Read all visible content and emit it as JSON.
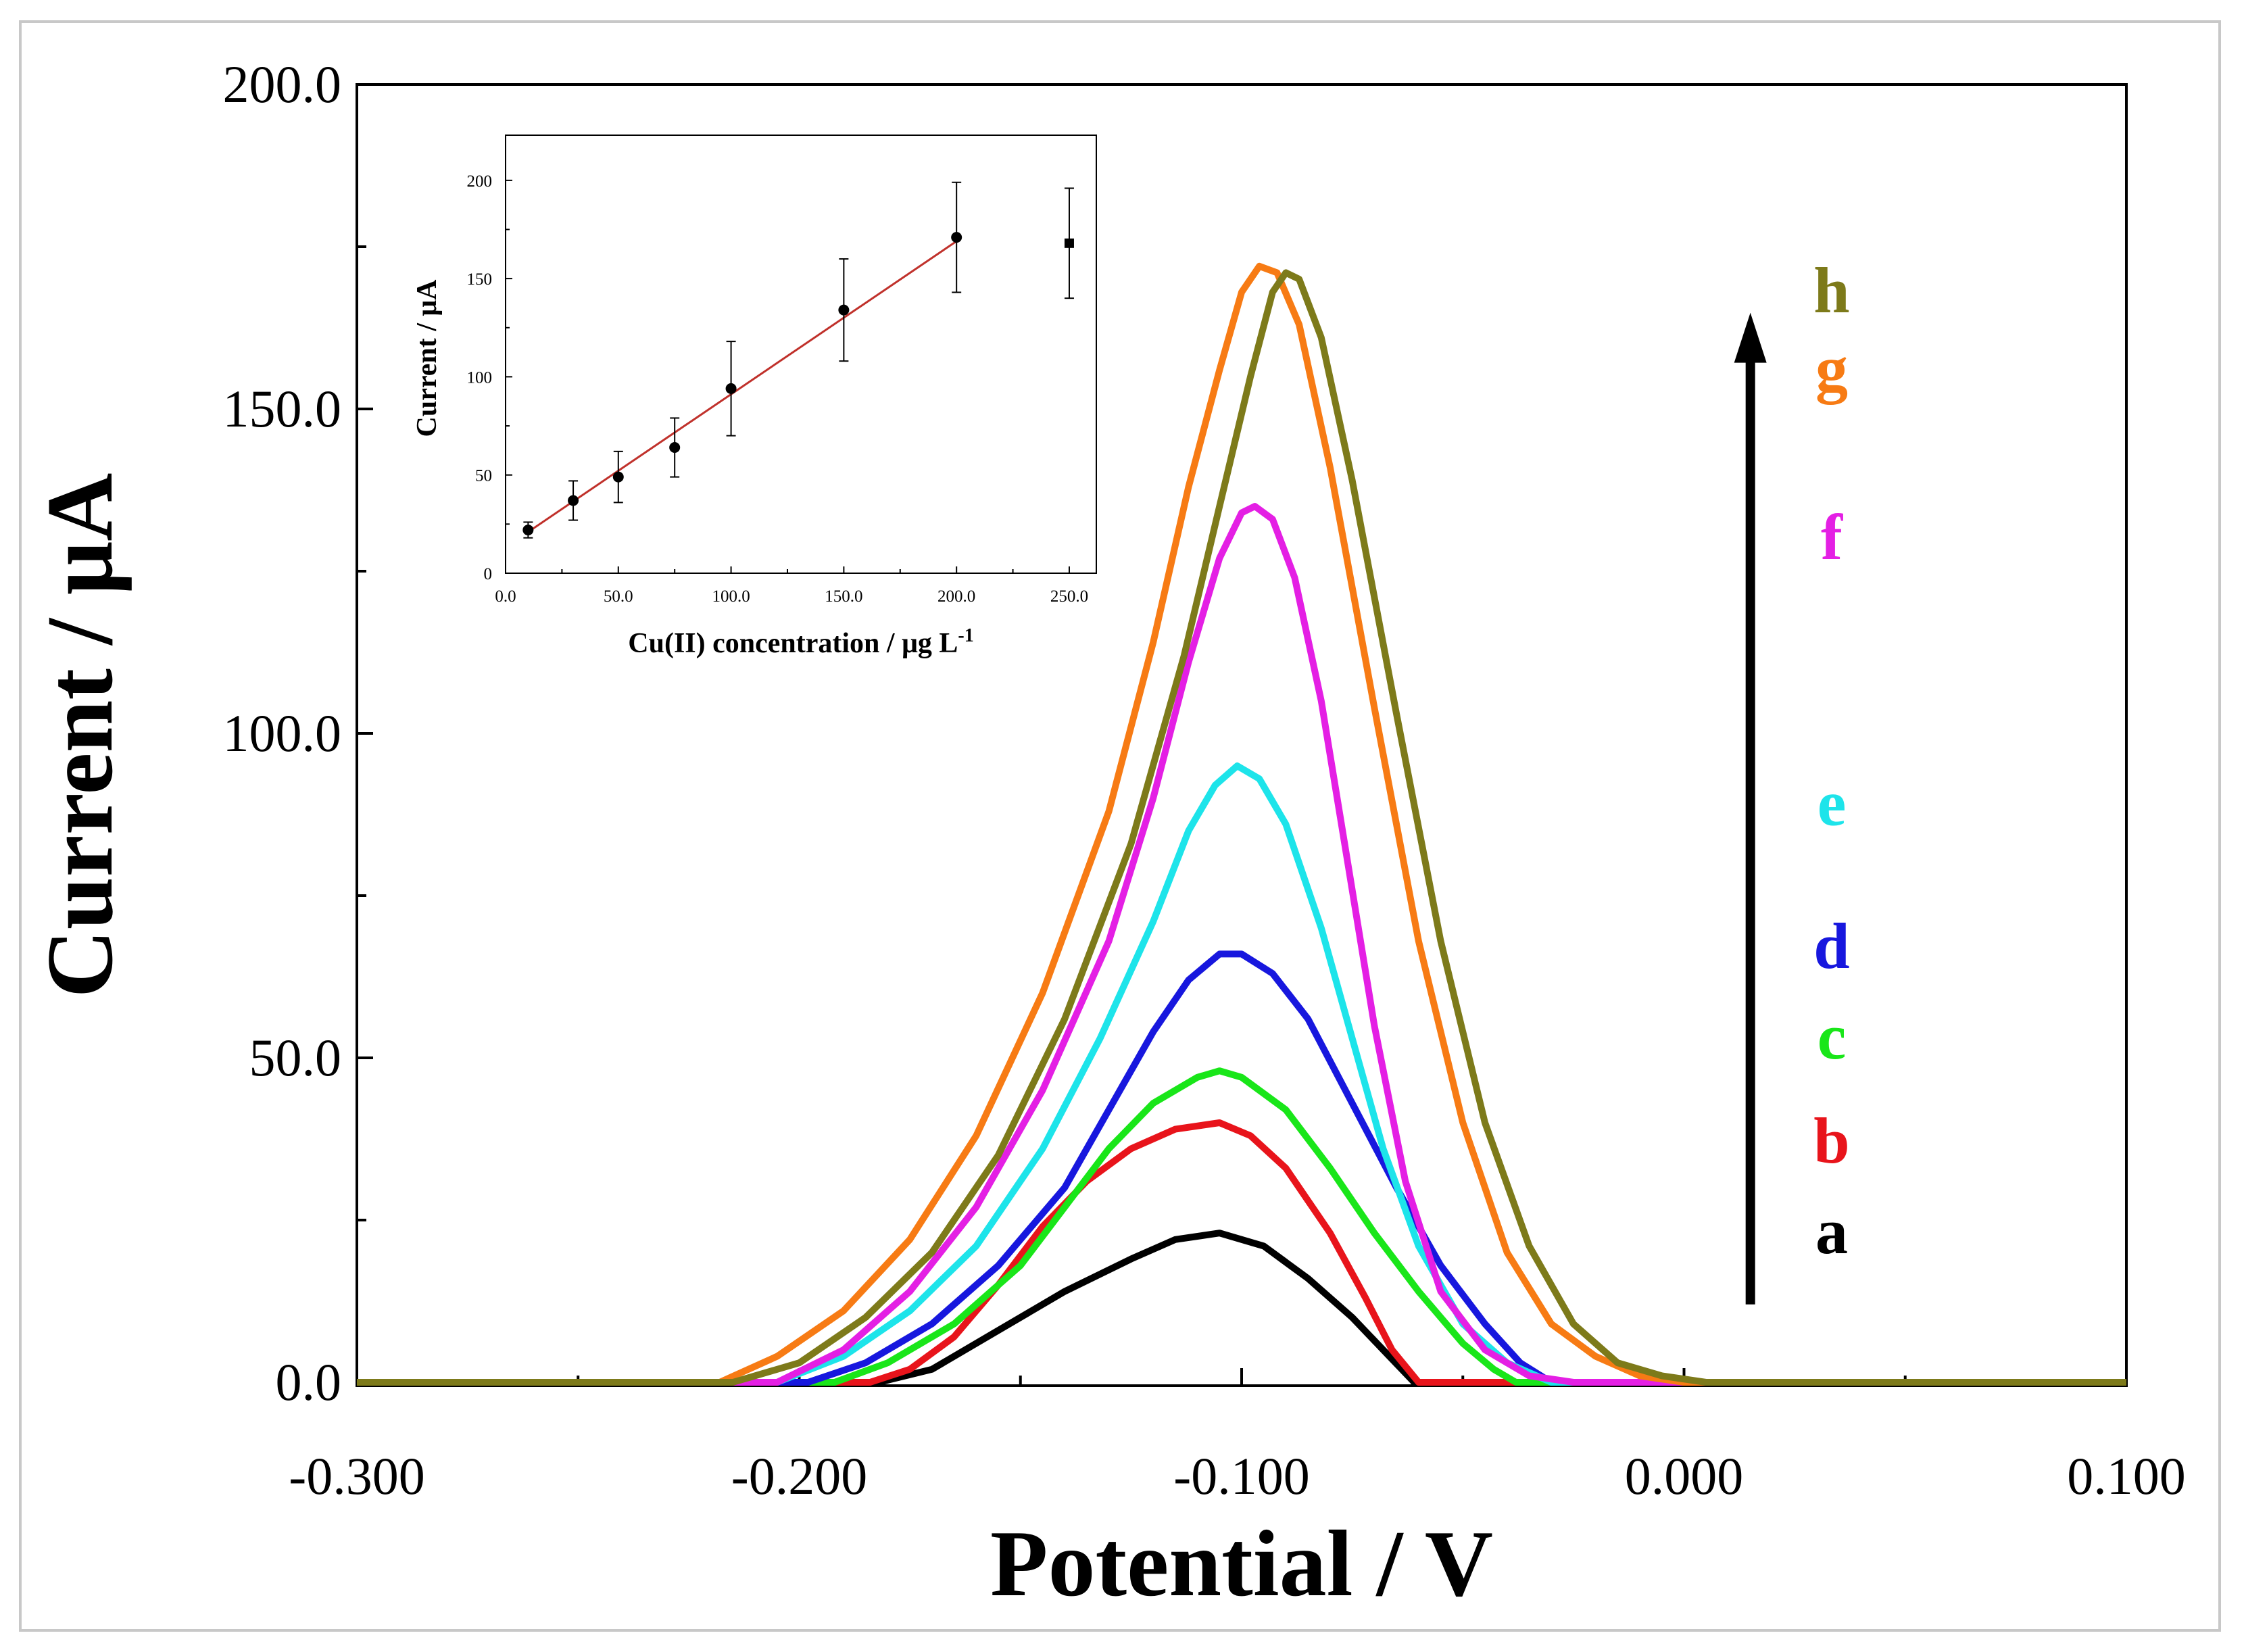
{
  "chart_data": [
    {
      "type": "line",
      "xlabel": "Potential / V",
      "ylabel": "Current / μA",
      "xlim": [
        -0.3,
        0.1
      ],
      "ylim": [
        0,
        200
      ],
      "xticks": [
        -0.3,
        -0.2,
        -0.1,
        0.0,
        0.1
      ],
      "xtick_labels": [
        "-0.300",
        "-0.200",
        "-0.100",
        "0.000",
        "0.100"
      ],
      "yticks": [
        0,
        50,
        100,
        150,
        200
      ],
      "ytick_labels": [
        "0.0",
        "50.0",
        "100.0",
        "150.0",
        "200.0"
      ],
      "arrow": {
        "from_current": 12,
        "to_current": 164,
        "potential": 0.015
      },
      "series": [
        {
          "name": "a",
          "color": "#000000",
          "points": [
            [
              -0.3,
              0
            ],
            [
              -0.182,
              0
            ],
            [
              -0.17,
              2
            ],
            [
              -0.155,
              8
            ],
            [
              -0.14,
              14
            ],
            [
              -0.125,
              19
            ],
            [
              -0.115,
              22
            ],
            [
              -0.105,
              23
            ],
            [
              -0.095,
              21
            ],
            [
              -0.085,
              16
            ],
            [
              -0.075,
              10
            ],
            [
              -0.068,
              5
            ],
            [
              -0.061,
              0
            ],
            [
              0.1,
              0
            ]
          ]
        },
        {
          "name": "b",
          "color": "#e8141b",
          "points": [
            [
              -0.3,
              0
            ],
            [
              -0.184,
              0
            ],
            [
              -0.175,
              2
            ],
            [
              -0.165,
              7
            ],
            [
              -0.155,
              15
            ],
            [
              -0.145,
              24
            ],
            [
              -0.135,
              31
            ],
            [
              -0.125,
              36
            ],
            [
              -0.115,
              39
            ],
            [
              -0.105,
              40
            ],
            [
              -0.098,
              38
            ],
            [
              -0.09,
              33
            ],
            [
              -0.08,
              23
            ],
            [
              -0.072,
              13
            ],
            [
              -0.066,
              5
            ],
            [
              -0.06,
              0
            ],
            [
              0.1,
              0
            ]
          ]
        },
        {
          "name": "c",
          "color": "#19e619",
          "points": [
            [
              -0.3,
              0
            ],
            [
              -0.192,
              0
            ],
            [
              -0.18,
              3
            ],
            [
              -0.165,
              9
            ],
            [
              -0.15,
              18
            ],
            [
              -0.14,
              27
            ],
            [
              -0.13,
              36
            ],
            [
              -0.12,
              43
            ],
            [
              -0.11,
              47
            ],
            [
              -0.105,
              48
            ],
            [
              -0.1,
              47
            ],
            [
              -0.09,
              42
            ],
            [
              -0.08,
              33
            ],
            [
              -0.07,
              23
            ],
            [
              -0.06,
              14
            ],
            [
              -0.05,
              6
            ],
            [
              -0.043,
              2
            ],
            [
              -0.038,
              0
            ],
            [
              0.1,
              0
            ]
          ]
        },
        {
          "name": "d",
          "color": "#1717de",
          "points": [
            [
              -0.3,
              0
            ],
            [
              -0.198,
              0
            ],
            [
              -0.185,
              3
            ],
            [
              -0.17,
              9
            ],
            [
              -0.155,
              18
            ],
            [
              -0.14,
              30
            ],
            [
              -0.13,
              42
            ],
            [
              -0.12,
              54
            ],
            [
              -0.112,
              62
            ],
            [
              -0.105,
              66
            ],
            [
              -0.1,
              66
            ],
            [
              -0.093,
              63
            ],
            [
              -0.085,
              56
            ],
            [
              -0.075,
              43
            ],
            [
              -0.065,
              30
            ],
            [
              -0.055,
              18
            ],
            [
              -0.045,
              9
            ],
            [
              -0.037,
              3
            ],
            [
              -0.03,
              0
            ],
            [
              0.1,
              0
            ]
          ]
        },
        {
          "name": "e",
          "color": "#1de4ea",
          "points": [
            [
              -0.3,
              0
            ],
            [
              -0.205,
              0
            ],
            [
              -0.19,
              4
            ],
            [
              -0.175,
              11
            ],
            [
              -0.16,
              21
            ],
            [
              -0.145,
              36
            ],
            [
              -0.132,
              53
            ],
            [
              -0.12,
              71
            ],
            [
              -0.112,
              85
            ],
            [
              -0.106,
              92
            ],
            [
              -0.101,
              95
            ],
            [
              -0.096,
              93
            ],
            [
              -0.09,
              86
            ],
            [
              -0.082,
              70
            ],
            [
              -0.075,
              53
            ],
            [
              -0.068,
              36
            ],
            [
              -0.06,
              21
            ],
            [
              -0.05,
              9
            ],
            [
              -0.04,
              3
            ],
            [
              -0.03,
              0
            ],
            [
              0.1,
              0
            ]
          ]
        },
        {
          "name": "f",
          "color": "#e41fe4",
          "points": [
            [
              -0.3,
              0
            ],
            [
              -0.205,
              0
            ],
            [
              -0.19,
              5
            ],
            [
              -0.175,
              14
            ],
            [
              -0.16,
              27
            ],
            [
              -0.145,
              45
            ],
            [
              -0.13,
              68
            ],
            [
              -0.12,
              90
            ],
            [
              -0.112,
              111
            ],
            [
              -0.105,
              127
            ],
            [
              -0.1,
              134
            ],
            [
              -0.097,
              135
            ],
            [
              -0.093,
              133
            ],
            [
              -0.088,
              124
            ],
            [
              -0.082,
              105
            ],
            [
              -0.076,
              80
            ],
            [
              -0.07,
              55
            ],
            [
              -0.063,
              31
            ],
            [
              -0.055,
              14
            ],
            [
              -0.045,
              5
            ],
            [
              -0.035,
              1
            ],
            [
              -0.025,
              0
            ],
            [
              0.1,
              0
            ]
          ]
        },
        {
          "name": "g",
          "color": "#f77b14",
          "points": [
            [
              -0.3,
              0
            ],
            [
              -0.218,
              0
            ],
            [
              -0.205,
              4
            ],
            [
              -0.19,
              11
            ],
            [
              -0.175,
              22
            ],
            [
              -0.16,
              38
            ],
            [
              -0.145,
              60
            ],
            [
              -0.13,
              88
            ],
            [
              -0.12,
              114
            ],
            [
              -0.112,
              138
            ],
            [
              -0.105,
              156
            ],
            [
              -0.1,
              168
            ],
            [
              -0.096,
              172
            ],
            [
              -0.092,
              171
            ],
            [
              -0.087,
              163
            ],
            [
              -0.08,
              141
            ],
            [
              -0.07,
              104
            ],
            [
              -0.06,
              68
            ],
            [
              -0.05,
              40
            ],
            [
              -0.04,
              20
            ],
            [
              -0.03,
              9
            ],
            [
              -0.02,
              4
            ],
            [
              -0.01,
              1
            ],
            [
              0.0,
              0
            ],
            [
              0.1,
              0
            ]
          ]
        },
        {
          "name": "h",
          "color": "#7d7a1a",
          "points": [
            [
              -0.3,
              0
            ],
            [
              -0.215,
              0
            ],
            [
              -0.2,
              3
            ],
            [
              -0.185,
              10
            ],
            [
              -0.17,
              20
            ],
            [
              -0.155,
              35
            ],
            [
              -0.14,
              56
            ],
            [
              -0.125,
              83
            ],
            [
              -0.113,
              112
            ],
            [
              -0.105,
              135
            ],
            [
              -0.098,
              155
            ],
            [
              -0.093,
              168
            ],
            [
              -0.09,
              171
            ],
            [
              -0.087,
              170
            ],
            [
              -0.082,
              161
            ],
            [
              -0.075,
              139
            ],
            [
              -0.065,
              103
            ],
            [
              -0.055,
              68
            ],
            [
              -0.045,
              40
            ],
            [
              -0.035,
              21
            ],
            [
              -0.025,
              9
            ],
            [
              -0.015,
              3
            ],
            [
              -0.005,
              1
            ],
            [
              0.005,
              0
            ],
            [
              0.1,
              0
            ]
          ]
        }
      ],
      "curve_labels": [
        {
          "text": "h",
          "color": "#7d7a1a",
          "current": 168
        },
        {
          "text": "g",
          "color": "#f77b14",
          "current": 156
        },
        {
          "text": "f",
          "color": "#e41fe4",
          "current": 130
        },
        {
          "text": "e",
          "color": "#1de4ea",
          "current": 89
        },
        {
          "text": "d",
          "color": "#1717de",
          "current": 67
        },
        {
          "text": "c",
          "color": "#19e619",
          "current": 53
        },
        {
          "text": "b",
          "color": "#e8141b",
          "current": 37
        },
        {
          "text": "a",
          "color": "#000000",
          "current": 23
        }
      ]
    },
    {
      "type": "scatter",
      "xlabel": "Cu(II) concentration / μg L",
      "xlabel_superscript": "-1",
      "ylabel": "Current / μA",
      "xlim": [
        0,
        262
      ],
      "ylim": [
        0,
        223
      ],
      "xticks": [
        0,
        50,
        100,
        150,
        200,
        250
      ],
      "xtick_labels": [
        "0.0",
        "50.0",
        "100.0",
        "150.0",
        "200.0",
        "250.0"
      ],
      "yticks": [
        0,
        50,
        100,
        150,
        200
      ],
      "ytick_labels": [
        "0",
        "50",
        "100",
        "150",
        "200"
      ],
      "points": [
        {
          "x": 10,
          "y": 22,
          "err": 4
        },
        {
          "x": 30,
          "y": 37,
          "err": 10
        },
        {
          "x": 50,
          "y": 49,
          "err": 13
        },
        {
          "x": 75,
          "y": 64,
          "err": 15
        },
        {
          "x": 100,
          "y": 94,
          "err": 24
        },
        {
          "x": 150,
          "y": 134,
          "err": 26
        },
        {
          "x": 200,
          "y": 171,
          "err": 28
        },
        {
          "x": 250,
          "y": 168,
          "err": 28,
          "marker": "square"
        }
      ],
      "fit": {
        "color": "#c0312b",
        "x": [
          10,
          200
        ],
        "y": [
          21,
          169
        ]
      }
    }
  ]
}
